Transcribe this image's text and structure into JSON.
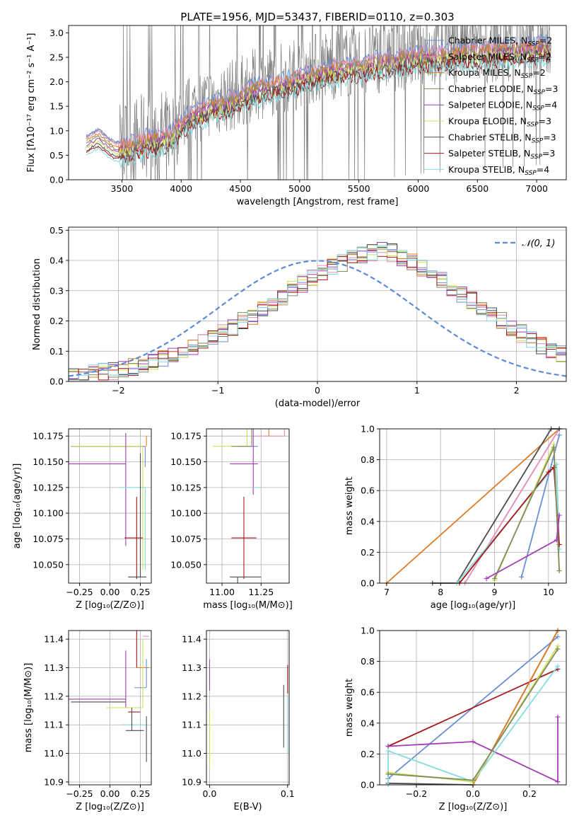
{
  "figure": {
    "title": "PLATE=1956, MJD=53437, FIBERID=0110, z=0.303"
  },
  "colors": {
    "Chabrier MILES": "#6a8fd6",
    "Salpeter MILES": "#e68bb8",
    "Kroupa MILES": "#e07b25",
    "Chabrier ELODIE": "#7f8c5f",
    "Salpeter ELODIE": "#a43db4",
    "Kroupa ELODIE": "#cfe056",
    "Chabrier STELIB": "#4c4c4c",
    "Salpeter STELIB": "#a81818",
    "Kroupa STELIB": "#85dce0",
    "data": "#7f7f7f",
    "normal": "#5b8bd6"
  },
  "chart_data": [
    {
      "type": "line",
      "title": "PLATE=1956, MJD=53437, FIBERID=0110, z=0.303",
      "xlabel": "wavelength [Angstrom, rest frame]",
      "ylabel": "Flux [fλ10⁻¹⁷ erg cm⁻² s⁻¹ A⁻¹]",
      "xlim": [
        3050,
        7250
      ],
      "ylim": [
        0,
        3.15
      ],
      "xticks": [
        3500,
        4000,
        4500,
        5000,
        5500,
        6000,
        6500,
        7000
      ],
      "yticks": [
        "0.0",
        "0.5",
        "1.0",
        "1.5",
        "2.0",
        "2.5",
        "3.0"
      ],
      "grid": false,
      "legend_position": "right",
      "legend": [
        {
          "base": "Chabrier MILES",
          "n": "=2"
        },
        {
          "base": "Salpeter MILES",
          "n": "=2"
        },
        {
          "base": "Kroupa MILES",
          "n": "=2"
        },
        {
          "base": "Chabrier ELODIE",
          "n": "=3"
        },
        {
          "base": "Salpeter ELODIE",
          "n": "=4"
        },
        {
          "base": "Kroupa ELODIE",
          "n": "=3"
        },
        {
          "base": "Chabrier STELIB",
          "n": "=3"
        },
        {
          "base": "Salpeter STELIB",
          "n": "=3"
        },
        {
          "base": "Kroupa STELIB",
          "n": "=4"
        }
      ],
      "model_continuum": {
        "x": [
          3200,
          3250,
          3300,
          3350,
          3400,
          3450,
          3500,
          3600,
          3700,
          3800,
          3900,
          4000,
          4100,
          4200,
          4300,
          4400,
          4500,
          4600,
          4700,
          4800,
          4900,
          5000,
          5200,
          5400,
          5600,
          5800,
          6000,
          6200,
          6400,
          6600,
          6800,
          7000,
          7100
        ],
        "y": [
          0.88,
          0.95,
          1.02,
          0.92,
          0.82,
          0.76,
          0.74,
          0.8,
          0.9,
          0.93,
          1.0,
          1.25,
          1.45,
          1.55,
          1.62,
          1.7,
          1.8,
          1.92,
          2.0,
          2.05,
          2.1,
          2.2,
          2.32,
          2.4,
          2.47,
          2.55,
          2.62,
          2.65,
          2.7,
          2.72,
          2.76,
          2.8,
          2.82
        ]
      }
    },
    {
      "type": "bar",
      "xlabel": "(data-model)/error",
      "ylabel": "Normed distribution",
      "xlim": [
        -2.5,
        2.5
      ],
      "ylim": [
        0,
        0.51
      ],
      "xticks": [
        "−2",
        "−1",
        "0",
        "1",
        "2"
      ],
      "yticks": [
        "0.0",
        "0.1",
        "0.2",
        "0.3",
        "0.4",
        "0.5"
      ],
      "grid": true,
      "legend_label": "𝒩(0, 1)",
      "bin_width": 0.1,
      "bin_start": -2.5,
      "series_base": [
        0.02,
        0.023,
        0.027,
        0.031,
        0.036,
        0.042,
        0.049,
        0.056,
        0.064,
        0.074,
        0.085,
        0.098,
        0.112,
        0.127,
        0.143,
        0.161,
        0.178,
        0.198,
        0.218,
        0.239,
        0.258,
        0.282,
        0.302,
        0.323,
        0.344,
        0.361,
        0.38,
        0.393,
        0.408,
        0.42,
        0.428,
        0.432,
        0.425,
        0.41,
        0.395,
        0.375,
        0.355,
        0.335,
        0.311,
        0.29,
        0.268,
        0.245,
        0.222,
        0.2,
        0.178,
        0.158,
        0.138,
        0.121,
        0.105,
        0.09
      ]
    },
    {
      "type": "scatter",
      "xlabel": "Z [log₁₀(Z/Z⊙)]",
      "ylabel": "age  [log₁₀(age/yr)]",
      "xlim": [
        -0.34,
        0.34
      ],
      "ylim": [
        10.032,
        10.182
      ],
      "xticks": [
        "−0.25",
        "0.00",
        "0.25"
      ],
      "yticks": [
        "10.050",
        "10.075",
        "10.100",
        "10.125",
        "10.150",
        "10.175"
      ],
      "grid": true,
      "points": [
        {
          "x": 0.3,
          "y": 10.175,
          "xerr": [
            0.0,
            0.0
          ],
          "yerr": [
            0.01,
            0.0
          ],
          "c": "Kroupa MILES"
        },
        {
          "x": 0.29,
          "y": 10.165,
          "xerr": [
            0.6,
            0.0
          ],
          "yerr": [
            0.02,
            0.0
          ],
          "c": "Chabrier MILES"
        },
        {
          "x": 0.28,
          "y": 10.165,
          "xerr": [
            0.6,
            0.0
          ],
          "yerr": [
            0.0,
            0.0
          ],
          "c": "Chabrier ELODIE"
        },
        {
          "x": 0.27,
          "y": 10.165,
          "xerr": [
            0.58,
            0.0
          ],
          "yerr": [
            0.12,
            0.0
          ],
          "c": "Kroupa ELODIE"
        },
        {
          "x": 0.13,
          "y": 10.148,
          "xerr": [
            0.47,
            0.0
          ],
          "yerr": [
            0.08,
            0.03
          ],
          "c": "Salpeter ELODIE"
        },
        {
          "x": 0.29,
          "y": 10.125,
          "xerr": [
            0.22,
            0.0
          ],
          "yerr": [
            0.08,
            0.0
          ],
          "c": "Kroupa STELIB"
        },
        {
          "x": 0.22,
          "y": 10.076,
          "xerr": [
            0.1,
            0.05
          ],
          "yerr": [
            0.04,
            0.04
          ],
          "c": "Salpeter STELIB"
        },
        {
          "x": 0.25,
          "y": 10.038,
          "xerr": [
            0.1,
            0.05
          ],
          "yerr": [
            0.0,
            0.12
          ],
          "c": "Chabrier STELIB"
        }
      ]
    },
    {
      "type": "scatter",
      "xlabel": "mass [log₁₀(M/M⊙)]",
      "xlim": [
        10.9,
        11.43
      ],
      "ylim": [
        10.032,
        10.182
      ],
      "xticks": [
        "11.00",
        "11.25"
      ],
      "yticks": [
        "10.050",
        "10.075",
        "10.100",
        "10.125",
        "10.150",
        "10.175"
      ],
      "grid": true,
      "points": [
        {
          "x": 11.4,
          "y": 10.175,
          "xerr": [
            0.2,
            0.0
          ],
          "yerr": [
            0.0,
            0.135
          ],
          "c": "Salpeter MILES"
        },
        {
          "x": 11.3,
          "y": 10.175,
          "xerr": [
            0.0,
            0.0
          ],
          "yerr": [
            0.0,
            0.12
          ],
          "c": "Kroupa MILES"
        },
        {
          "x": 11.2,
          "y": 10.165,
          "xerr": [
            0.1,
            0.03
          ],
          "yerr": [
            0.0,
            0.0
          ],
          "c": "Chabrier MILES"
        },
        {
          "x": 11.16,
          "y": 10.165,
          "xerr": [
            0.22,
            0.0
          ],
          "yerr": [
            0.0,
            0.12
          ],
          "c": "Kroupa ELODIE"
        },
        {
          "x": 11.19,
          "y": 10.165,
          "xerr": [
            0.13,
            0.0
          ],
          "yerr": [
            0.0,
            0.08
          ],
          "c": "Chabrier ELODIE"
        },
        {
          "x": 11.2,
          "y": 10.148,
          "xerr": [
            0.15,
            0.03
          ],
          "yerr": [
            0.03,
            0.1
          ],
          "c": "Salpeter ELODIE"
        },
        {
          "x": 11.25,
          "y": 10.125,
          "xerr": [
            0.05,
            0.0
          ],
          "yerr": [
            0.0,
            0.0
          ],
          "c": "Kroupa STELIB"
        },
        {
          "x": 11.14,
          "y": 10.076,
          "xerr": [
            0.08,
            0.08
          ],
          "yerr": [
            0.04,
            0.04
          ],
          "c": "Salpeter STELIB"
        },
        {
          "x": 11.1,
          "y": 10.038,
          "xerr": [
            0.05,
            0.15
          ],
          "yerr": [
            0.12,
            0.0
          ],
          "c": "Chabrier STELIB"
        }
      ]
    },
    {
      "type": "line",
      "xlabel": "age  [log₁₀(age/yr)]",
      "ylabel": "mass weight",
      "xlim": [
        6.87,
        10.33
      ],
      "ylim": [
        0,
        1.0
      ],
      "xticks": [
        "7",
        "8",
        "9",
        "10"
      ],
      "yticks": [
        "0.0",
        "0.2",
        "0.4",
        "0.6",
        "0.8",
        "1.0"
      ],
      "grid": true,
      "series": [
        {
          "c": "Kroupa MILES",
          "x": [
            7.0,
            10.2
          ],
          "y": [
            0.0,
            1.0
          ]
        },
        {
          "c": "Chabrier MILES",
          "x": [
            9.5,
            10.2
          ],
          "y": [
            0.04,
            0.96
          ]
        },
        {
          "c": "Salpeter MILES",
          "x": [
            8.45,
            10.2
          ],
          "y": [
            0.0,
            1.0
          ]
        },
        {
          "c": "Chabrier STELIB",
          "x": [
            7.85,
            8.3,
            10.05,
            10.2
          ],
          "y": [
            0.0,
            0.0,
            1.0,
            1.0
          ]
        },
        {
          "c": "Kroupa STELIB",
          "x": [
            8.3,
            10.1,
            10.15,
            10.2
          ],
          "y": [
            0.0,
            0.75,
            0.77,
            0.22
          ]
        },
        {
          "c": "Salpeter STELIB",
          "x": [
            8.35,
            10.0,
            10.1,
            10.2
          ],
          "y": [
            0.0,
            0.72,
            0.75,
            0.25
          ]
        },
        {
          "c": "Kroupa ELODIE",
          "x": [
            9.0,
            10.1,
            10.2
          ],
          "y": [
            0.02,
            0.9,
            0.08
          ]
        },
        {
          "c": "Chabrier ELODIE",
          "x": [
            9.0,
            10.1,
            10.2
          ],
          "y": [
            0.03,
            0.88,
            0.08
          ]
        },
        {
          "c": "Salpeter ELODIE",
          "x": [
            8.85,
            10.15,
            10.2
          ],
          "y": [
            0.03,
            0.28,
            0.44
          ]
        }
      ]
    },
    {
      "type": "scatter",
      "xlabel": "Z [log₁₀(Z/Z⊙)]",
      "ylabel": "mass [log₁₀(M/M⊙)]",
      "xlim": [
        -0.34,
        0.34
      ],
      "ylim": [
        10.89,
        11.43
      ],
      "xticks": [
        "−0.25",
        "0.00",
        "0.25"
      ],
      "yticks": [
        "10.9",
        "11.0",
        "11.1",
        "11.2",
        "11.3",
        "11.4"
      ],
      "grid": true,
      "points": [
        {
          "x": 0.32,
          "y": 11.41,
          "xerr": [
            0.05,
            0.0
          ],
          "yerr": [
            0.0,
            0.0
          ],
          "c": "Salpeter MILES"
        },
        {
          "x": 0.32,
          "y": 11.3,
          "xerr": [
            0.1,
            0.0
          ],
          "yerr": [
            0.0,
            0.0
          ],
          "c": "Kroupa MILES"
        },
        {
          "x": 0.22,
          "y": 11.3,
          "xerr": [
            0.0,
            0.0
          ],
          "yerr": [
            0.0,
            0.13
          ],
          "c": "Salpeter STELIB"
        },
        {
          "x": 0.3,
          "y": 11.23,
          "xerr": [
            0.1,
            0.0
          ],
          "yerr": [
            0.0,
            0.1
          ],
          "c": "Chabrier MILES"
        },
        {
          "x": 0.13,
          "y": 11.19,
          "xerr": [
            0.47,
            0.0
          ],
          "yerr": [
            0.03,
            0.17
          ],
          "c": "Salpeter ELODIE"
        },
        {
          "x": 0.13,
          "y": 11.18,
          "xerr": [
            0.45,
            0.0
          ],
          "yerr": [
            0.0,
            0.0
          ],
          "c": "Chabrier STELIB"
        },
        {
          "x": 0.27,
          "y": 11.16,
          "xerr": [
            0.3,
            0.0
          ],
          "yerr": [
            0.0,
            0.24
          ],
          "c": "Kroupa ELODIE"
        },
        {
          "x": 0.25,
          "y": 11.145,
          "xerr": [
            0.1,
            0.0
          ],
          "yerr": [
            0.0,
            0.0
          ],
          "c": "Salpeter STELIB"
        },
        {
          "x": 0.2,
          "y": 11.1,
          "xerr": [
            0.1,
            0.1
          ],
          "yerr": [
            0.0,
            0.0
          ],
          "c": "Kroupa STELIB"
        },
        {
          "x": 0.18,
          "y": 11.08,
          "xerr": [
            0.05,
            0.1
          ],
          "yerr": [
            0.0,
            0.08
          ],
          "c": "Chabrier STELIB"
        },
        {
          "x": 0.3,
          "y": 11.05,
          "xerr": [
            0.0,
            0.0
          ],
          "yerr": [
            0.08,
            0.08
          ],
          "c": "Chabrier STELIB"
        }
      ]
    },
    {
      "type": "scatter",
      "xlabel": "E(B-V)",
      "xlim": [
        -0.004,
        0.102
      ],
      "ylim": [
        10.89,
        11.43
      ],
      "xticks": [
        "0.0",
        "0.1"
      ],
      "yticks": [
        "10.9",
        "11.0",
        "11.1",
        "11.2",
        "11.3",
        "11.4"
      ],
      "grid": true,
      "points": [
        {
          "x": 0.0,
          "y": 11.41,
          "xerr": [
            0,
            0
          ],
          "yerr": [
            0,
            0
          ],
          "c": "Salpeter MILES"
        },
        {
          "x": 0.0,
          "y": 11.27,
          "xerr": [
            0,
            0
          ],
          "yerr": [
            0.05,
            0.06
          ],
          "c": "Salpeter ELODIE"
        },
        {
          "x": 0.0,
          "y": 11.05,
          "xerr": [
            0,
            0
          ],
          "yerr": [
            0.1,
            0.1
          ],
          "c": "Kroupa ELODIE"
        },
        {
          "x": 0.1,
          "y": 11.26,
          "xerr": [
            0,
            0
          ],
          "yerr": [
            0.05,
            0.05
          ],
          "c": "Salpeter STELIB"
        },
        {
          "x": 0.095,
          "y": 11.13,
          "xerr": [
            0,
            0
          ],
          "yerr": [
            0.11,
            0.11
          ],
          "c": "Chabrier STELIB"
        },
        {
          "x": 0.1,
          "y": 11.1,
          "xerr": [
            0,
            0
          ],
          "yerr": [
            0.1,
            0.1
          ],
          "c": "Kroupa STELIB"
        }
      ]
    },
    {
      "type": "line",
      "xlabel": "Z [log₁₀(Z/Z⊙)]",
      "ylabel": "mass weight",
      "xlim": [
        -0.33,
        0.33
      ],
      "ylim": [
        0,
        1.0
      ],
      "xticks": [
        "−0.2",
        "0.0",
        "0.2"
      ],
      "yticks": [
        "0.0",
        "0.2",
        "0.4",
        "0.6",
        "0.8",
        "1.0"
      ],
      "grid": true,
      "series": [
        {
          "c": "Chabrier MILES",
          "x": [
            -0.3,
            0.3
          ],
          "y": [
            0.04,
            0.96
          ]
        },
        {
          "c": "Salpeter STELIB",
          "x": [
            -0.3,
            0.3
          ],
          "y": [
            0.25,
            0.75
          ]
        },
        {
          "c": "Chabrier STELIB",
          "x": [
            -0.3,
            0.0,
            0.3
          ],
          "y": [
            0.01,
            0.0,
            1.0
          ]
        },
        {
          "c": "Kroupa MILES",
          "x": [
            0.0,
            0.3
          ],
          "y": [
            0.0,
            1.0
          ]
        },
        {
          "c": "Salpeter ELODIE",
          "x": [
            -0.3,
            0.0,
            0.3,
            0.3
          ],
          "y": [
            0.25,
            0.28,
            0.02,
            0.44
          ]
        },
        {
          "c": "Kroupa STELIB",
          "x": [
            -0.3,
            -0.3,
            0.0,
            0.3
          ],
          "y": [
            0.0,
            0.22,
            0.02,
            0.77
          ]
        },
        {
          "c": "Kroupa ELODIE",
          "x": [
            -0.3,
            0.0,
            0.3
          ],
          "y": [
            0.08,
            0.02,
            0.9
          ]
        },
        {
          "c": "Chabrier ELODIE",
          "x": [
            -0.3,
            0.0,
            0.3
          ],
          "y": [
            0.07,
            0.03,
            0.88
          ]
        }
      ]
    }
  ]
}
